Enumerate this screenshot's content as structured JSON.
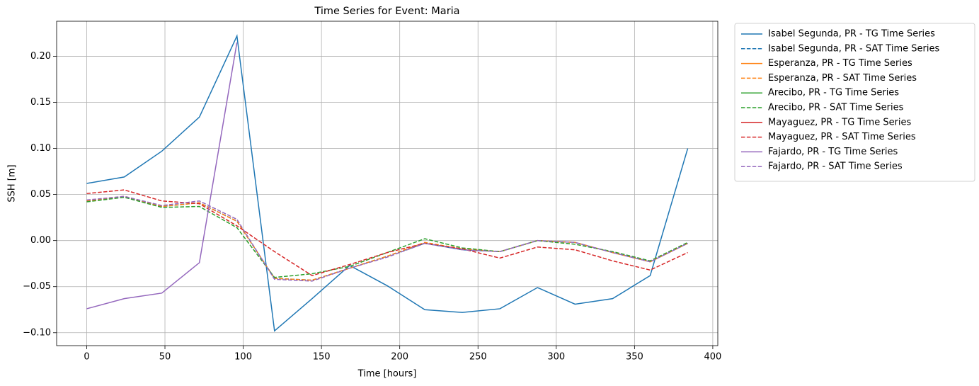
{
  "chart_data": {
    "type": "line",
    "title": "Time Series for Event: Maria",
    "xlabel": "Time [hours]",
    "ylabel": "SSH [m]",
    "x": [
      0,
      24,
      48,
      72,
      96,
      120,
      144,
      168,
      192,
      216,
      240,
      264,
      288,
      312,
      336,
      360,
      384
    ],
    "xlim": [
      -19.2,
      403.2
    ],
    "ylim": [
      -0.114,
      0.238
    ],
    "xticks": [
      0,
      50,
      100,
      150,
      200,
      250,
      300,
      350,
      400
    ],
    "yticks": [
      {
        "value": -0.1,
        "label": "−0.10"
      },
      {
        "value": -0.05,
        "label": "−0.05"
      },
      {
        "value": 0,
        "label": "0.00"
      },
      {
        "value": 0.05,
        "label": "0.05"
      },
      {
        "value": 0.1,
        "label": "0.10"
      },
      {
        "value": 0.15,
        "label": "0.15"
      },
      {
        "value": 0.2,
        "label": "0.20"
      }
    ],
    "grid": true,
    "legend": "outside upper right",
    "series": [
      {
        "name": "Isabel Segunda, PR - TG Time Series",
        "color": "#1f77b4",
        "linestyle": "solid",
        "values": [
          0.062,
          0.069,
          0.097,
          0.134,
          0.222,
          -0.098,
          -0.063,
          -0.027,
          -0.049,
          -0.075,
          -0.078,
          -0.074,
          -0.051,
          -0.069,
          -0.063,
          -0.038,
          0.1
        ]
      },
      {
        "name": "Isabel Segunda, PR - SAT Time Series",
        "color": "#1f77b4",
        "linestyle": "dashed",
        "values": [
          0.043,
          0.047,
          0.037,
          0.041,
          0.021,
          -0.041,
          -0.043,
          -0.03,
          -0.017,
          -0.003,
          -0.01,
          -0.012,
          0.0,
          -0.002,
          -0.013,
          -0.023,
          -0.003
        ]
      },
      {
        "name": "Esperanza, PR - TG Time Series",
        "color": "#ff7f0e",
        "linestyle": "solid",
        "values": [
          null,
          null,
          null,
          null,
          null,
          null,
          null,
          null,
          null,
          null,
          null,
          null,
          null,
          null,
          null,
          null,
          null
        ]
      },
      {
        "name": "Esperanza, PR - SAT Time Series",
        "color": "#ff7f0e",
        "linestyle": "dashed",
        "values": [
          0.043,
          0.048,
          0.037,
          0.041,
          0.021,
          -0.041,
          -0.043,
          -0.03,
          -0.017,
          -0.002,
          -0.009,
          -0.012,
          0.0,
          -0.002,
          -0.013,
          -0.023,
          -0.003
        ]
      },
      {
        "name": "Arecibo, PR - TG Time Series",
        "color": "#2ca02c",
        "linestyle": "solid",
        "values": [
          null,
          null,
          null,
          null,
          null,
          null,
          null,
          null,
          null,
          null,
          null,
          null,
          null,
          null,
          null,
          null,
          null
        ]
      },
      {
        "name": "Arecibo, PR - SAT Time Series",
        "color": "#2ca02c",
        "linestyle": "dashed",
        "values": [
          0.042,
          0.047,
          0.036,
          0.037,
          0.014,
          -0.04,
          -0.036,
          -0.028,
          -0.013,
          0.002,
          -0.008,
          -0.012,
          0.0,
          -0.004,
          -0.012,
          -0.022,
          -0.002
        ]
      },
      {
        "name": "Mayaguez, PR - TG Time Series",
        "color": "#d62728",
        "linestyle": "solid",
        "values": [
          null,
          null,
          null,
          null,
          null,
          null,
          null,
          null,
          null,
          null,
          null,
          null,
          null,
          null,
          null,
          null,
          null
        ]
      },
      {
        "name": "Mayaguez, PR - SAT Time Series",
        "color": "#d62728",
        "linestyle": "dashed",
        "values": [
          0.051,
          0.055,
          0.043,
          0.04,
          0.016,
          -0.012,
          -0.038,
          -0.026,
          -0.013,
          -0.003,
          -0.009,
          -0.019,
          -0.007,
          -0.01,
          -0.022,
          -0.032,
          -0.013
        ]
      },
      {
        "name": "Fajardo, PR - TG Time Series",
        "color": "#9467bd",
        "linestyle": "solid",
        "values": [
          -0.074,
          -0.063,
          -0.057,
          -0.024,
          0.215,
          null,
          null,
          null,
          null,
          null,
          null,
          null,
          null,
          null,
          null,
          null,
          null
        ]
      },
      {
        "name": "Fajardo, PR - SAT Time Series",
        "color": "#9467bd",
        "linestyle": "dashed",
        "values": [
          0.044,
          0.048,
          0.038,
          0.043,
          0.023,
          -0.042,
          -0.044,
          -0.03,
          -0.018,
          -0.003,
          -0.01,
          -0.012,
          0.0,
          -0.002,
          -0.013,
          -0.023,
          -0.003
        ]
      }
    ]
  }
}
